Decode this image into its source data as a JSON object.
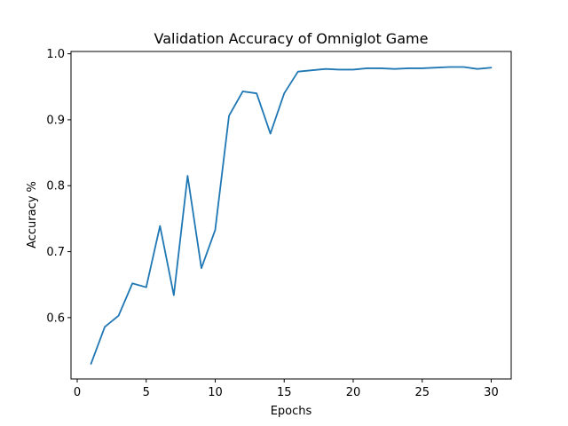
{
  "chart_data": {
    "type": "line",
    "title": "Validation Accuracy of Omniglot Game",
    "xlabel": "Epochs",
    "ylabel": "Accuracy %",
    "xlim": [
      -0.45,
      31.45
    ],
    "ylim": [
      0.507,
      1.0035
    ],
    "xticks": [
      0,
      5,
      10,
      15,
      20,
      25,
      30
    ],
    "xtick_labels": [
      "0",
      "5",
      "10",
      "15",
      "20",
      "25",
      "30"
    ],
    "yticks": [
      0.6,
      0.7,
      0.8,
      0.9,
      1.0
    ],
    "ytick_labels": [
      "0.6",
      "0.7",
      "0.8",
      "0.9",
      "1.0"
    ],
    "grid": false,
    "series": [
      {
        "name": "validation accuracy",
        "color": "#1f77b4",
        "x": [
          1,
          2,
          3,
          4,
          5,
          6,
          7,
          8,
          9,
          10,
          11,
          12,
          13,
          14,
          15,
          16,
          17,
          18,
          19,
          20,
          21,
          22,
          23,
          24,
          25,
          26,
          27,
          28,
          29,
          30
        ],
        "y": [
          0.53,
          0.586,
          0.603,
          0.652,
          0.646,
          0.739,
          0.634,
          0.815,
          0.675,
          0.733,
          0.906,
          0.943,
          0.94,
          0.879,
          0.94,
          0.973,
          0.975,
          0.977,
          0.976,
          0.976,
          0.978,
          0.978,
          0.977,
          0.978,
          0.978,
          0.979,
          0.98,
          0.98,
          0.977,
          0.979
        ]
      }
    ]
  }
}
